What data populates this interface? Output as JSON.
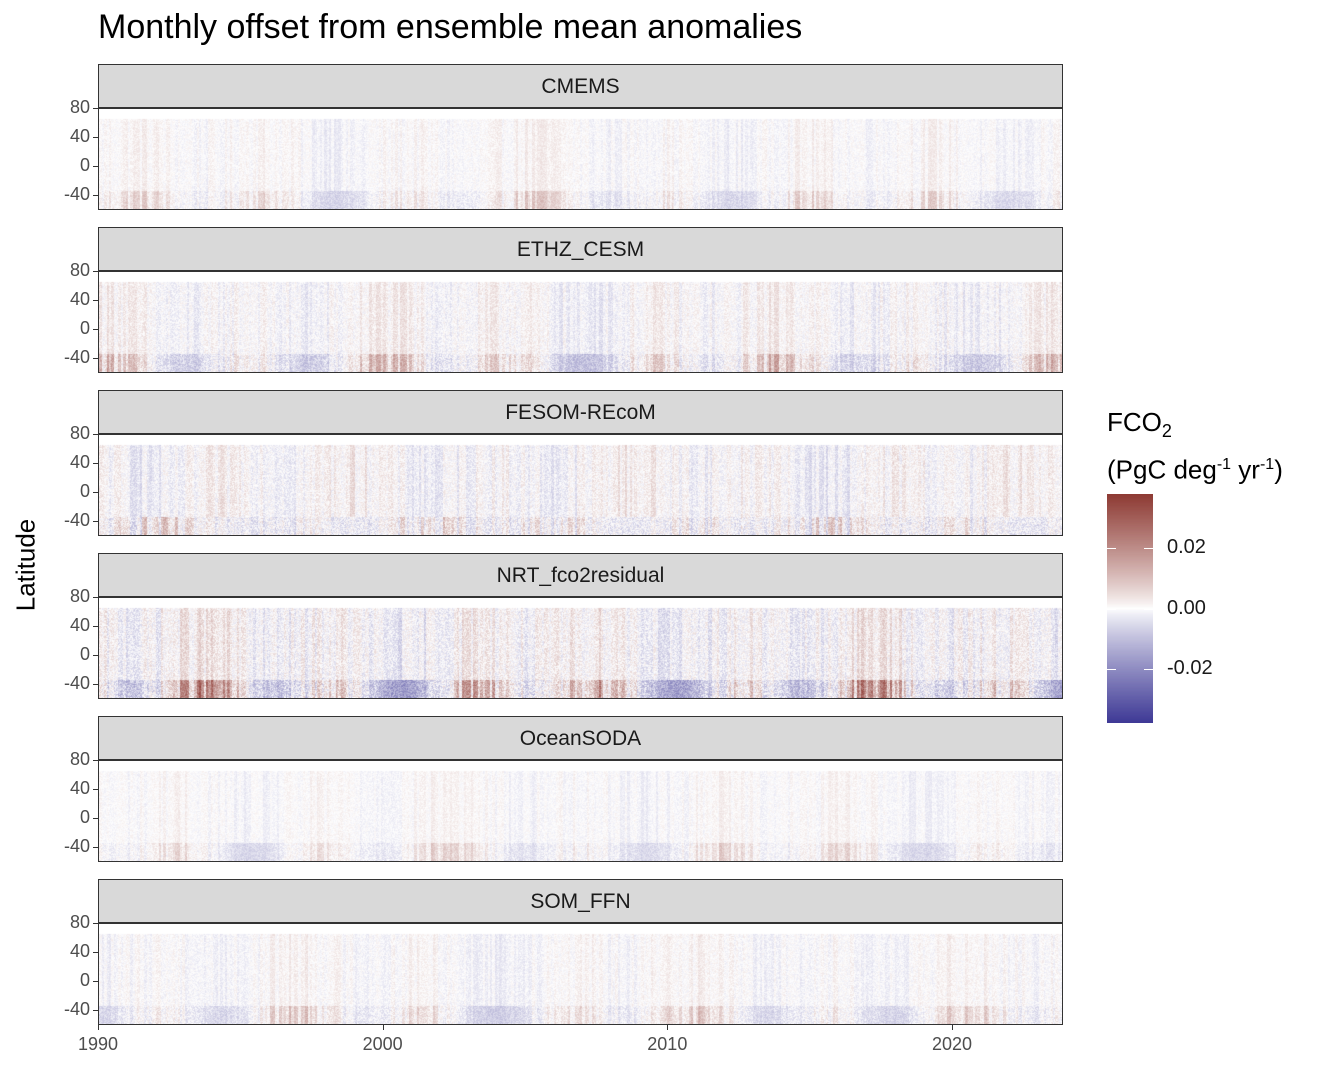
{
  "chart_data": {
    "type": "heatmap",
    "title": "Monthly offset from ensemble mean anomalies",
    "xlabel": "",
    "ylabel": "Latitude",
    "x_range": [
      1990,
      2023.9
    ],
    "x_ticks": [
      "1990",
      "2000",
      "2010",
      "2020"
    ],
    "y_range": [
      -60,
      80
    ],
    "y_ticks": [
      "80",
      "40",
      "0",
      "-40"
    ],
    "facets": [
      {
        "name": "CMEMS",
        "intensity": 0.45,
        "south_band": 0.006,
        "south_sign": 1
      },
      {
        "name": "ETHZ_CESM",
        "intensity": 0.7,
        "south_band": 0.01,
        "south_sign": 1
      },
      {
        "name": "FESOM-REcoM",
        "intensity": 0.8,
        "south_band": 0.012,
        "south_sign": -1
      },
      {
        "name": "NRT_fco2residual",
        "intensity": 1.0,
        "south_band": 0.02,
        "south_sign": 1
      },
      {
        "name": "OceanSODA",
        "intensity": 0.4,
        "south_band": 0.006,
        "south_sign": 1
      },
      {
        "name": "SOM_FFN",
        "intensity": 0.5,
        "south_band": 0.008,
        "south_sign": 1
      }
    ],
    "legend": {
      "title": "FCO",
      "title_subscript": "2",
      "units_prefix": "(PgC deg",
      "units_sup1": "-1",
      "units_mid": " yr",
      "units_sup2": "-1",
      "units_suffix": ")",
      "range": [
        -0.038,
        0.038
      ],
      "ticks": [
        {
          "value": 0.02,
          "label": "0.02"
        },
        {
          "value": 0.0,
          "label": "0.00"
        },
        {
          "value": -0.02,
          "label": "-0.02"
        }
      ],
      "colors": {
        "low": "#3f3a96",
        "mid": "#ffffff",
        "high": "#8e3b34"
      },
      "placement": "right"
    }
  }
}
